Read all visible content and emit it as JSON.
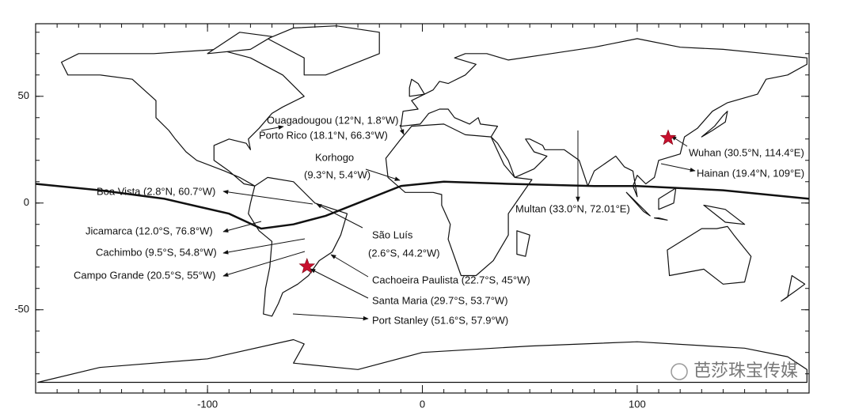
{
  "chart_data": {
    "type": "map",
    "xlim": [
      -180,
      180
    ],
    "ylim": [
      -89,
      84
    ],
    "xticks": [
      -100,
      0,
      100
    ],
    "yticks": [
      50,
      0,
      -50
    ],
    "annotations": [
      "Ouagadougou (12°N, 1.8°W)",
      "Porto Rico (18.1°N, 66.3°W)",
      "Korhogo",
      "(9.3°N, 5.4°W)",
      "Boa Vista (2.8°N, 60.7°W)",
      "Jicamarca (12.0°S, 76.8°W)",
      "Cachimbo (9.5°S, 54.8°W)",
      "Campo Grande (20.5°S, 55°W)",
      "São Luís",
      "(2.6°S, 44.2°W)",
      "Cachoeira Paulista (22.7°S, 45°W)",
      "Santa Maria (29.7°S, 53.7°W)",
      "Port Stanley (51.6°S, 57.9°W)",
      "Multan (33.0°N, 72.01°E)",
      "Wuhan (30.5°N, 114.4°E)",
      "Hainan (19.4°N, 109°E)"
    ],
    "markers": [
      {
        "x": 114.4,
        "y": 30.5,
        "color": "#c8102e"
      },
      {
        "x": -53.7,
        "y": -29.7,
        "color": "#c8102e"
      }
    ],
    "watermark": "芭莎珠宝传媒"
  }
}
